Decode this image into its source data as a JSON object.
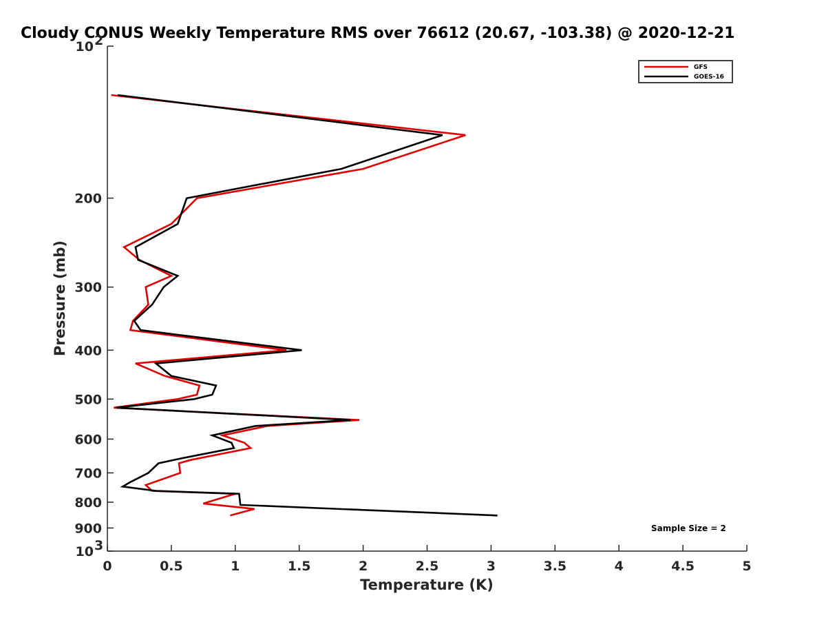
{
  "chart_data": {
    "type": "line",
    "title": "Cloudy CONUS Weekly Temperature RMS over 76612 (20.67, -103.38) @ 2020-12-21",
    "xlabel": "Temperature (K)",
    "ylabel": "Pressure (mb)",
    "xlim": [
      0,
      5
    ],
    "ylim": [
      100,
      1000
    ],
    "yscale": "log",
    "y_reversed": true,
    "xticks": [
      0,
      0.5,
      1,
      1.5,
      2,
      2.5,
      3,
      3.5,
      4,
      4.5,
      5
    ],
    "xtick_labels": [
      "0",
      "0.5",
      "1",
      "1.5",
      "2",
      "2.5",
      "3",
      "3.5",
      "4",
      "4.5",
      "5"
    ],
    "yticks": [
      200,
      300,
      400,
      500,
      600,
      700,
      800,
      900
    ],
    "ytick_labels": [
      "200",
      "300",
      "400",
      "500",
      "600",
      "700",
      "800",
      "900"
    ],
    "y_end_labels": [
      {
        "value": 100,
        "base": "10",
        "exp": "2"
      },
      {
        "value": 1000,
        "base": "10",
        "exp": "3"
      }
    ],
    "legend_position": "top-right",
    "series": [
      {
        "name": "GFS",
        "color": "#e00000",
        "points": [
          {
            "x": 0.03,
            "p": 125
          },
          {
            "x": 2.8,
            "p": 150
          },
          {
            "x": 2.0,
            "p": 175
          },
          {
            "x": 0.7,
            "p": 200
          },
          {
            "x": 0.5,
            "p": 225
          },
          {
            "x": 0.13,
            "p": 250
          },
          {
            "x": 0.25,
            "p": 265
          },
          {
            "x": 0.5,
            "p": 285
          },
          {
            "x": 0.3,
            "p": 300
          },
          {
            "x": 0.32,
            "p": 325
          },
          {
            "x": 0.2,
            "p": 350
          },
          {
            "x": 0.18,
            "p": 365
          },
          {
            "x": 1.4,
            "p": 400
          },
          {
            "x": 0.22,
            "p": 425
          },
          {
            "x": 0.45,
            "p": 450
          },
          {
            "x": 0.72,
            "p": 470
          },
          {
            "x": 0.7,
            "p": 490
          },
          {
            "x": 0.55,
            "p": 500
          },
          {
            "x": 0.05,
            "p": 520
          },
          {
            "x": 1.97,
            "p": 550
          },
          {
            "x": 1.25,
            "p": 565
          },
          {
            "x": 0.9,
            "p": 590
          },
          {
            "x": 1.07,
            "p": 610
          },
          {
            "x": 1.12,
            "p": 625
          },
          {
            "x": 0.65,
            "p": 660
          },
          {
            "x": 0.56,
            "p": 670
          },
          {
            "x": 0.57,
            "p": 700
          },
          {
            "x": 0.3,
            "p": 740
          },
          {
            "x": 0.35,
            "p": 760
          },
          {
            "x": 1.0,
            "p": 770
          },
          {
            "x": 0.75,
            "p": 805
          },
          {
            "x": 1.15,
            "p": 825
          },
          {
            "x": 0.96,
            "p": 850
          }
        ]
      },
      {
        "name": "GOES-16",
        "color": "#000000",
        "points": [
          {
            "x": 0.08,
            "p": 125
          },
          {
            "x": 2.62,
            "p": 150
          },
          {
            "x": 1.83,
            "p": 175
          },
          {
            "x": 0.62,
            "p": 200
          },
          {
            "x": 0.55,
            "p": 225
          },
          {
            "x": 0.22,
            "p": 250
          },
          {
            "x": 0.24,
            "p": 265
          },
          {
            "x": 0.55,
            "p": 285
          },
          {
            "x": 0.44,
            "p": 300
          },
          {
            "x": 0.35,
            "p": 325
          },
          {
            "x": 0.21,
            "p": 350
          },
          {
            "x": 0.26,
            "p": 365
          },
          {
            "x": 1.52,
            "p": 400
          },
          {
            "x": 0.38,
            "p": 425
          },
          {
            "x": 0.5,
            "p": 450
          },
          {
            "x": 0.85,
            "p": 470
          },
          {
            "x": 0.82,
            "p": 490
          },
          {
            "x": 0.68,
            "p": 500
          },
          {
            "x": 0.07,
            "p": 520
          },
          {
            "x": 1.9,
            "p": 550
          },
          {
            "x": 1.16,
            "p": 565
          },
          {
            "x": 0.82,
            "p": 590
          },
          {
            "x": 0.97,
            "p": 610
          },
          {
            "x": 0.99,
            "p": 625
          },
          {
            "x": 0.58,
            "p": 655
          },
          {
            "x": 0.4,
            "p": 670
          },
          {
            "x": 0.32,
            "p": 700
          },
          {
            "x": 0.18,
            "p": 730
          },
          {
            "x": 0.12,
            "p": 745
          },
          {
            "x": 0.38,
            "p": 760
          },
          {
            "x": 1.03,
            "p": 770
          },
          {
            "x": 1.04,
            "p": 810
          },
          {
            "x": 3.05,
            "p": 850
          }
        ]
      }
    ],
    "annotations": [
      {
        "text": "Sample Size = 2",
        "position": "bottom-right"
      }
    ]
  }
}
